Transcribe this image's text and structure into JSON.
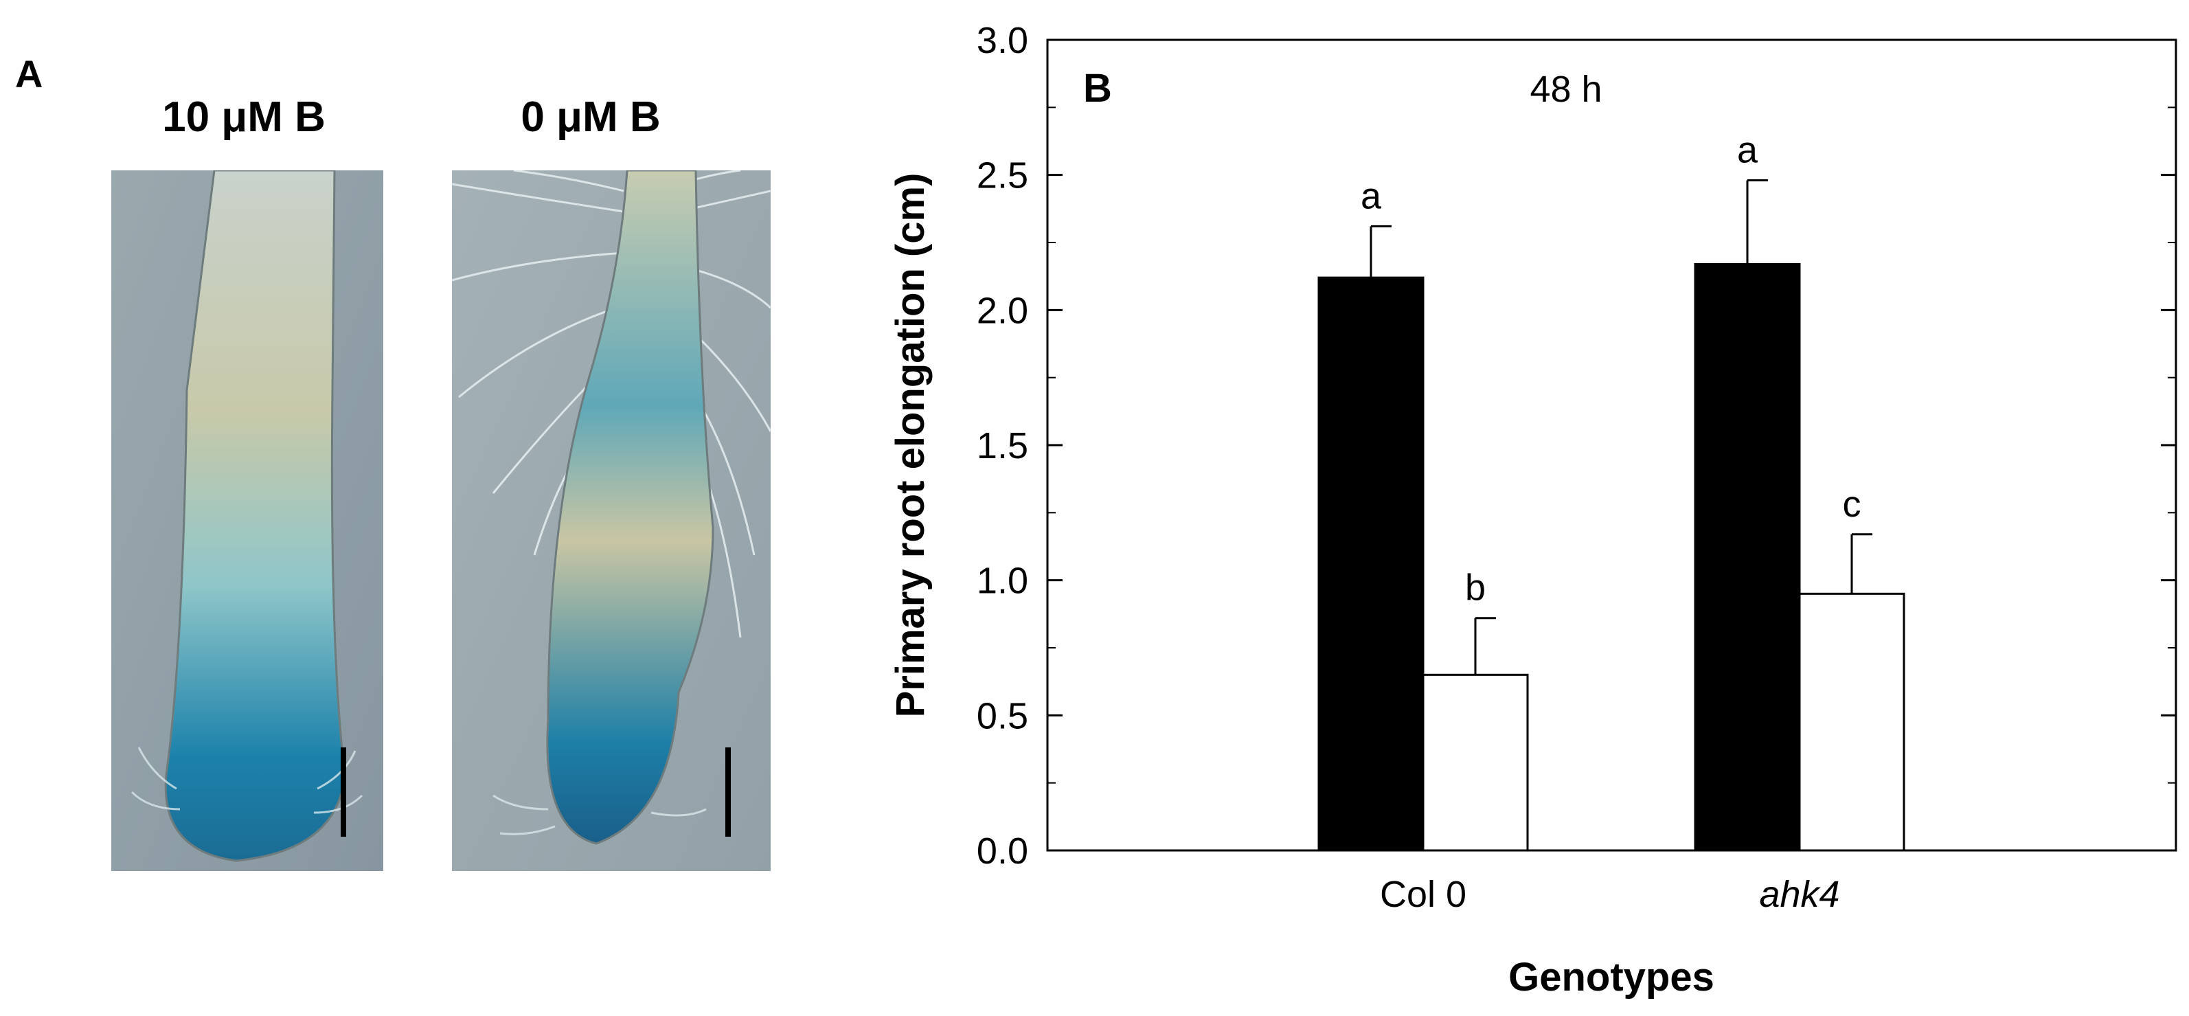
{
  "panel_a": {
    "letter": "A",
    "images": [
      {
        "title": "10 μM B"
      },
      {
        "title": "0 μM B"
      }
    ]
  },
  "colors": {
    "treatment_boron": "#000000",
    "treatment_no_boron": "#ffffff",
    "image_background": "#8f9fa6",
    "root_stain": "#1a7fa6"
  },
  "chart_data": {
    "type": "bar",
    "panel_letter": "B",
    "annotation": "48 h",
    "categories": [
      "Col 0",
      "ahk4"
    ],
    "xlabel": "Genotypes",
    "ylabel": "Primary root elongation (cm)",
    "ylim": [
      0,
      3.0
    ],
    "yticks": [
      "0.0",
      "0.5",
      "1.0",
      "1.5",
      "2.0",
      "2.5",
      "3.0"
    ],
    "series": [
      {
        "name": "10 μM B",
        "color": "#000000",
        "values": [
          2.12,
          2.17
        ],
        "errors": [
          0.19,
          0.31
        ],
        "letters": [
          "a",
          "a"
        ]
      },
      {
        "name": "0 μM B",
        "color": "#ffffff",
        "values": [
          0.65,
          0.95
        ],
        "errors": [
          0.21,
          0.22
        ],
        "letters": [
          "b",
          "c"
        ]
      }
    ]
  }
}
